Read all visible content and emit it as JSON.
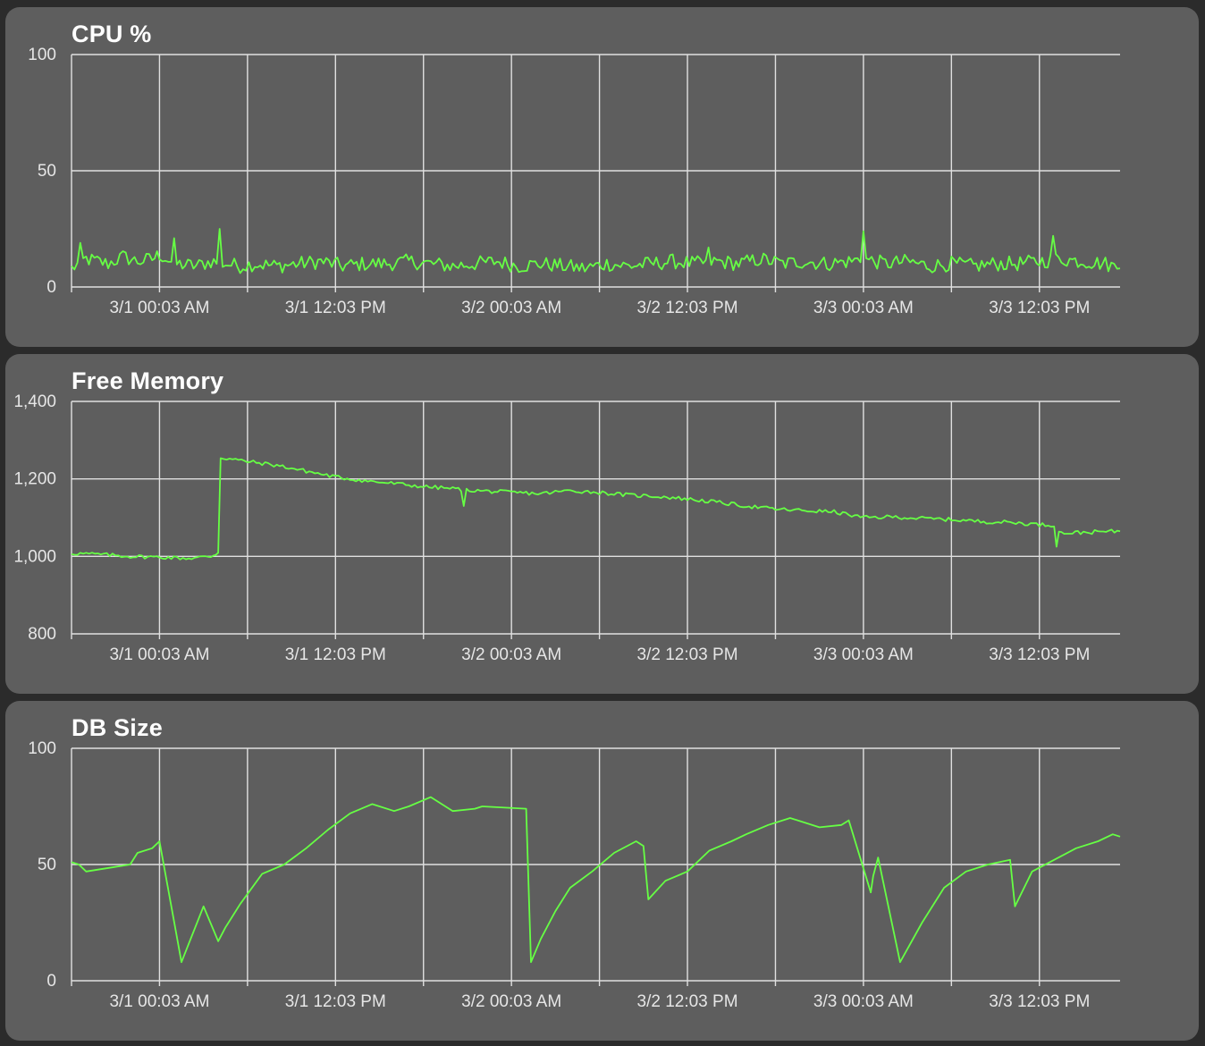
{
  "charts": [
    {
      "id": "cpu",
      "title": "CPU %"
    },
    {
      "id": "mem",
      "title": "Free Memory"
    },
    {
      "id": "db",
      "title": "DB Size"
    }
  ],
  "colors": {
    "background": "#2b2b2b",
    "panel": "#5e5e5e",
    "grid": "#e0e0e0",
    "line": "#66ff44",
    "text": "#e6e6e6",
    "title": "#ffffff"
  },
  "chart_data": [
    {
      "type": "line",
      "title": "CPU %",
      "xlabel": "",
      "ylabel": "",
      "x_range": [
        "2/29 18:03",
        "3/3 17:33"
      ],
      "xticks": [
        "3/1 00:03 AM",
        "3/1 12:03 PM",
        "3/2 00:03 AM",
        "3/2 12:03 PM",
        "3/3 00:03 AM",
        "3/3 12:03 PM"
      ],
      "yticks": [
        "0",
        "50",
        "100"
      ],
      "ylim": [
        0,
        100
      ],
      "grid": true,
      "series": [
        {
          "x": [
            "2/29 18:03",
            "2/29 19:03",
            "2/29 20:33",
            "2/29 21:33",
            "2/29 22:33",
            "2/29 23:33",
            "3/1 00:03",
            "3/1 01:03",
            "3/1 02:33",
            "3/1 03:33",
            "3/1 04:33",
            "3/1 05:33",
            "3/1 06:33",
            "3/1 08:03",
            "3/1 09:33",
            "3/1 11:03",
            "3/1 12:33",
            "3/1 14:03",
            "3/1 15:33",
            "3/1 17:03",
            "3/1 18:33",
            "3/1 20:03",
            "3/1 21:33",
            "3/1 23:03",
            "3/2 00:33",
            "3/2 02:03",
            "3/2 03:33",
            "3/2 05:03",
            "3/2 06:33",
            "3/2 08:03",
            "3/2 09:33",
            "3/2 11:03",
            "3/2 12:33",
            "3/2 14:03",
            "3/2 15:33",
            "3/2 17:03",
            "3/2 18:33",
            "3/2 20:03",
            "3/2 21:33",
            "3/2 23:03",
            "3/3 00:03",
            "3/3 01:33",
            "3/3 03:03",
            "3/3 04:33",
            "3/3 06:03",
            "3/3 07:33",
            "3/3 09:03",
            "3/3 10:33",
            "3/3 12:03",
            "3/3 13:33",
            "3/3 15:03",
            "3/3 16:33",
            "3/3 17:33"
          ],
          "values": [
            8,
            12,
            10,
            13,
            11,
            12,
            14,
            10,
            9,
            11,
            10,
            9,
            10,
            9,
            10,
            11,
            9,
            10,
            10,
            11,
            10,
            9,
            10,
            11,
            9,
            10,
            9,
            8,
            10,
            9,
            10,
            11,
            10,
            11,
            10,
            12,
            10,
            11,
            10,
            11,
            12,
            10,
            11,
            9,
            10,
            9,
            10,
            10,
            11,
            12,
            11,
            10,
            8
          ]
        }
      ]
    },
    {
      "type": "line",
      "title": "Free Memory",
      "xlabel": "",
      "ylabel": "",
      "x_range": [
        "2/29 18:03",
        "3/3 17:33"
      ],
      "xticks": [
        "3/1 00:03 AM",
        "3/1 12:03 PM",
        "3/2 00:03 AM",
        "3/2 12:03 PM",
        "3/3 00:03 AM",
        "3/3 12:03 PM"
      ],
      "yticks": [
        "800",
        "1,000",
        "1,200",
        "1,400"
      ],
      "ylim": [
        800,
        1400
      ],
      "grid": true,
      "series": [
        {
          "x": [
            "2/29 18:03",
            "2/29 20:03",
            "2/29 22:03",
            "3/1 00:03",
            "3/1 02:03",
            "3/1 03:33",
            "3/1 04:03",
            "3/1 04:13",
            "3/1 06:03",
            "3/1 08:03",
            "3/1 10:03",
            "3/1 12:03",
            "3/1 14:03",
            "3/1 16:03",
            "3/1 18:03",
            "3/1 20:03",
            "3/1 21:33",
            "3/2 00:03",
            "3/2 02:03",
            "3/2 04:03",
            "3/2 06:03",
            "3/2 08:03",
            "3/2 10:03",
            "3/2 12:03",
            "3/2 14:03",
            "3/2 16:03",
            "3/2 18:03",
            "3/2 20:03",
            "3/2 22:03",
            "3/3 00:03",
            "3/3 02:03",
            "3/3 04:03",
            "3/3 06:03",
            "3/3 08:03",
            "3/3 10:03",
            "3/3 12:03",
            "3/3 13:03",
            "3/3 13:33",
            "3/3 15:03",
            "3/3 17:33"
          ],
          "values": [
            1008,
            1005,
            1000,
            998,
            995,
            1000,
            1010,
            1255,
            1245,
            1235,
            1220,
            1205,
            1195,
            1188,
            1180,
            1175,
            1170,
            1165,
            1162,
            1170,
            1165,
            1158,
            1155,
            1148,
            1140,
            1130,
            1122,
            1118,
            1115,
            1100,
            1102,
            1098,
            1095,
            1090,
            1088,
            1082,
            1080,
            1060,
            1062,
            1065
          ]
        }
      ]
    },
    {
      "type": "line",
      "title": "DB Size",
      "xlabel": "",
      "ylabel": "",
      "x_range": [
        "2/29 18:03",
        "3/3 17:33"
      ],
      "xticks": [
        "3/1 00:03 AM",
        "3/1 12:03 PM",
        "3/2 00:03 AM",
        "3/2 12:03 PM",
        "3/3 00:03 AM",
        "3/3 12:03 PM"
      ],
      "yticks": [
        "0",
        "50",
        "100"
      ],
      "ylim": [
        0,
        100
      ],
      "grid": true,
      "series": [
        {
          "x": [
            "2/29 18:03",
            "2/29 18:33",
            "2/29 19:03",
            "2/29 20:03",
            "2/29 22:03",
            "2/29 22:33",
            "2/29 23:33",
            "3/1 00:03",
            "3/1 01:33",
            "3/1 03:03",
            "3/1 04:03",
            "3/1 04:33",
            "3/1 05:33",
            "3/1 07:03",
            "3/1 08:33",
            "3/1 10:03",
            "3/1 11:33",
            "3/1 13:03",
            "3/1 14:33",
            "3/1 16:03",
            "3/1 17:03",
            "3/1 18:33",
            "3/1 20:03",
            "3/1 21:33",
            "3/1 22:03",
            "3/2 01:03",
            "3/2 01:23",
            "3/2 02:03",
            "3/2 03:03",
            "3/2 04:03",
            "3/2 05:33",
            "3/2 07:03",
            "3/2 08:33",
            "3/2 09:03",
            "3/2 09:23",
            "3/2 10:33",
            "3/2 12:03",
            "3/2 13:33",
            "3/2 15:03",
            "3/2 16:03",
            "3/2 17:33",
            "3/2 19:03",
            "3/2 21:03",
            "3/2 22:33",
            "3/2 23:03",
            "3/3 00:33",
            "3/3 00:43",
            "3/3 01:03",
            "3/3 02:33",
            "3/3 04:03",
            "3/3 05:33",
            "3/3 07:03",
            "3/3 08:33",
            "3/3 10:03",
            "3/3 10:23",
            "3/3 11:33",
            "3/3 13:03",
            "3/3 14:33",
            "3/3 16:03",
            "3/3 17:03",
            "3/3 17:33"
          ],
          "values": [
            51,
            50,
            47,
            48,
            50,
            55,
            57,
            60,
            8,
            32,
            17,
            23,
            33,
            46,
            50,
            57,
            65,
            72,
            76,
            73,
            75,
            79,
            73,
            74,
            75,
            74,
            8,
            18,
            30,
            40,
            47,
            55,
            60,
            58,
            35,
            43,
            47,
            56,
            60,
            63,
            67,
            70,
            66,
            67,
            69,
            38,
            45,
            53,
            8,
            25,
            40,
            47,
            50,
            52,
            32,
            47,
            52,
            57,
            60,
            63,
            62
          ]
        }
      ]
    }
  ]
}
